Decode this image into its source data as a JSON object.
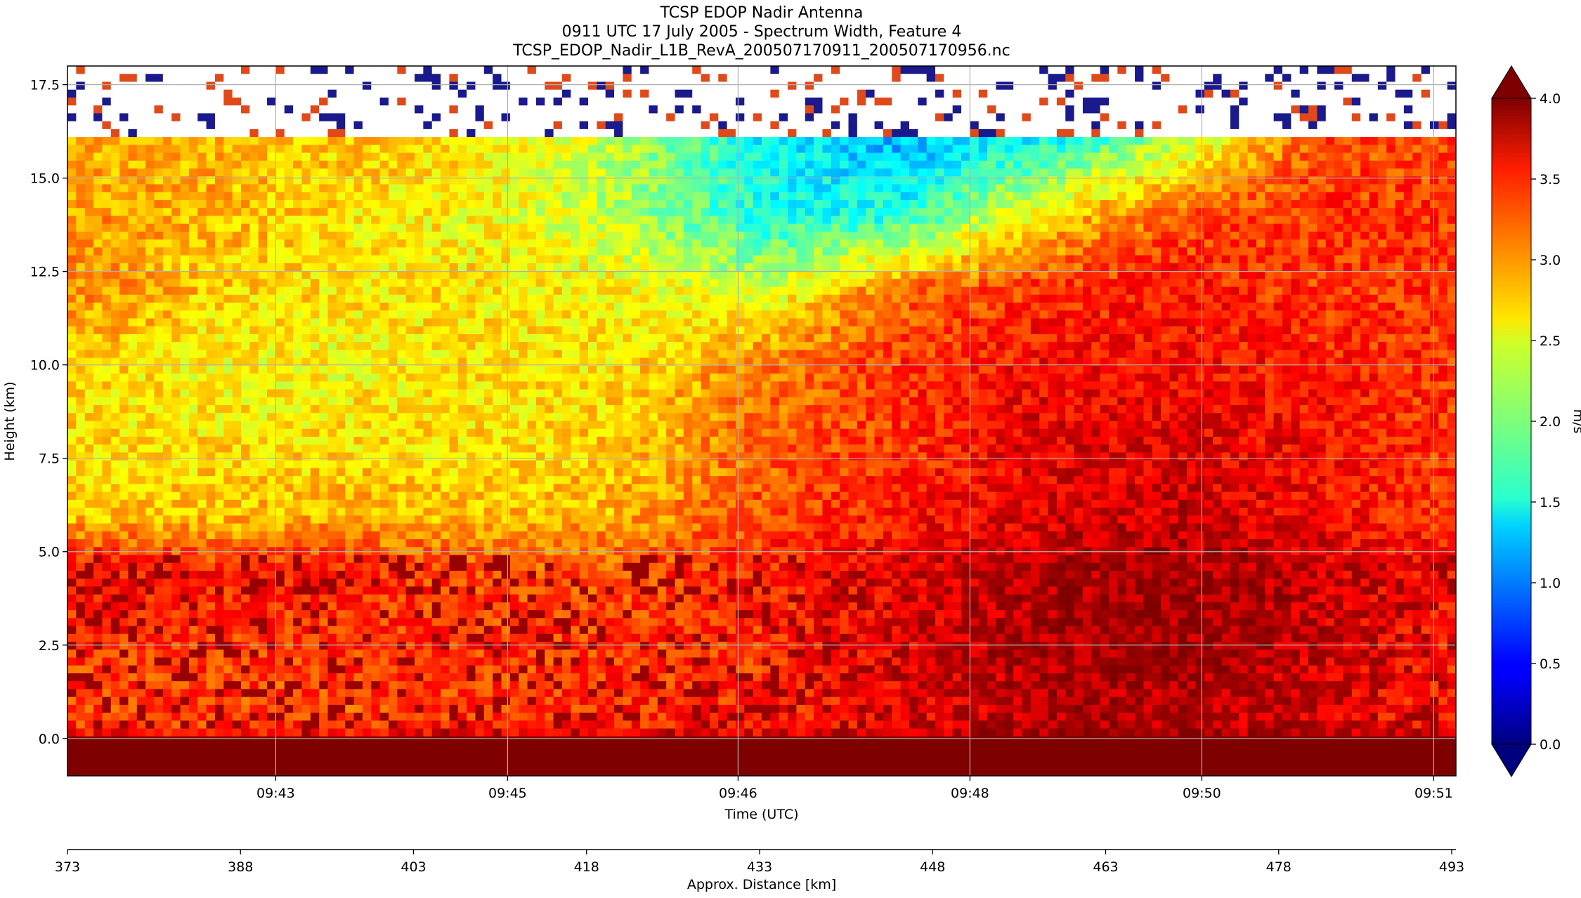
{
  "chart_data": {
    "type": "heatmap",
    "title": [
      "TCSP EDOP Nadir Antenna",
      "0911 UTC 17 July 2005 - Spectrum Width, Feature 4",
      "TCSP_EDOP_Nadir_L1B_RevA_200507170911_200507170956.nc"
    ],
    "xlabel": "Time (UTC)",
    "ylabel": "Height (km)",
    "x2label": "Approx. Distance [km]",
    "colorbar_label": "m/s",
    "x_ticks": [
      "09:43",
      "09:45",
      "09:46",
      "09:48",
      "09:50",
      "09:51"
    ],
    "y_ticks": [
      "0.0",
      "2.5",
      "5.0",
      "7.5",
      "10.0",
      "12.5",
      "15.0",
      "17.5"
    ],
    "y_values": [
      0.0,
      2.5,
      5.0,
      7.5,
      10.0,
      12.5,
      15.0,
      17.5
    ],
    "ylim": [
      -1.0,
      18.0
    ],
    "x2_ticks": [
      "373",
      "388",
      "403",
      "418",
      "433",
      "448",
      "463",
      "478",
      "493"
    ],
    "colorbar_ticks": [
      "0.0",
      "0.5",
      "1.0",
      "1.5",
      "2.0",
      "2.5",
      "3.0",
      "3.5",
      "4.0"
    ],
    "colorbar_values": [
      0.0,
      0.5,
      1.0,
      1.5,
      2.0,
      2.5,
      3.0,
      3.5,
      4.0
    ],
    "clim": [
      0.0,
      4.0
    ],
    "colormap": "jet",
    "extend": "both",
    "grid": true,
    "x_tick_fractions": [
      0.15,
      0.317,
      0.483,
      0.65,
      0.817,
      0.984
    ],
    "field": {
      "description_rows_height_km": [
        16.0,
        14.0,
        12.0,
        10.0,
        8.0,
        6.0,
        4.5,
        2.5,
        0.5,
        -0.5
      ],
      "columns_time_fraction": [
        0.0,
        0.1,
        0.2,
        0.3,
        0.4,
        0.5,
        0.6,
        0.7,
        0.8,
        0.9,
        1.0
      ],
      "values_m_s": [
        [
          2.8,
          2.8,
          2.7,
          2.6,
          2.2,
          1.5,
          1.2,
          1.5,
          2.2,
          3.2,
          3.2
        ],
        [
          2.9,
          2.8,
          2.6,
          2.5,
          2.2,
          1.6,
          1.6,
          2.6,
          3.2,
          3.3,
          3.3
        ],
        [
          3.0,
          2.7,
          2.6,
          2.6,
          2.5,
          2.3,
          3.1,
          3.3,
          3.4,
          3.3,
          3.3
        ],
        [
          2.7,
          2.5,
          2.5,
          2.6,
          2.6,
          3.0,
          3.3,
          3.5,
          3.5,
          3.4,
          3.3
        ],
        [
          2.6,
          2.6,
          2.6,
          2.6,
          2.7,
          3.1,
          3.3,
          3.6,
          3.6,
          3.5,
          3.3
        ],
        [
          2.7,
          2.7,
          2.8,
          2.7,
          2.8,
          3.2,
          3.4,
          3.6,
          3.7,
          3.5,
          3.3
        ],
        [
          3.5,
          3.4,
          3.4,
          3.2,
          3.2,
          3.4,
          3.6,
          3.8,
          3.9,
          3.7,
          3.5
        ],
        [
          3.3,
          3.3,
          3.3,
          3.3,
          3.3,
          3.3,
          3.6,
          3.8,
          3.9,
          3.7,
          3.4
        ],
        [
          3.2,
          3.2,
          3.2,
          3.3,
          3.3,
          3.4,
          3.5,
          3.8,
          3.8,
          3.6,
          3.4
        ],
        [
          4.0,
          4.0,
          4.0,
          4.0,
          4.0,
          4.0,
          4.0,
          4.0,
          4.0,
          4.0,
          4.0
        ]
      ]
    }
  }
}
